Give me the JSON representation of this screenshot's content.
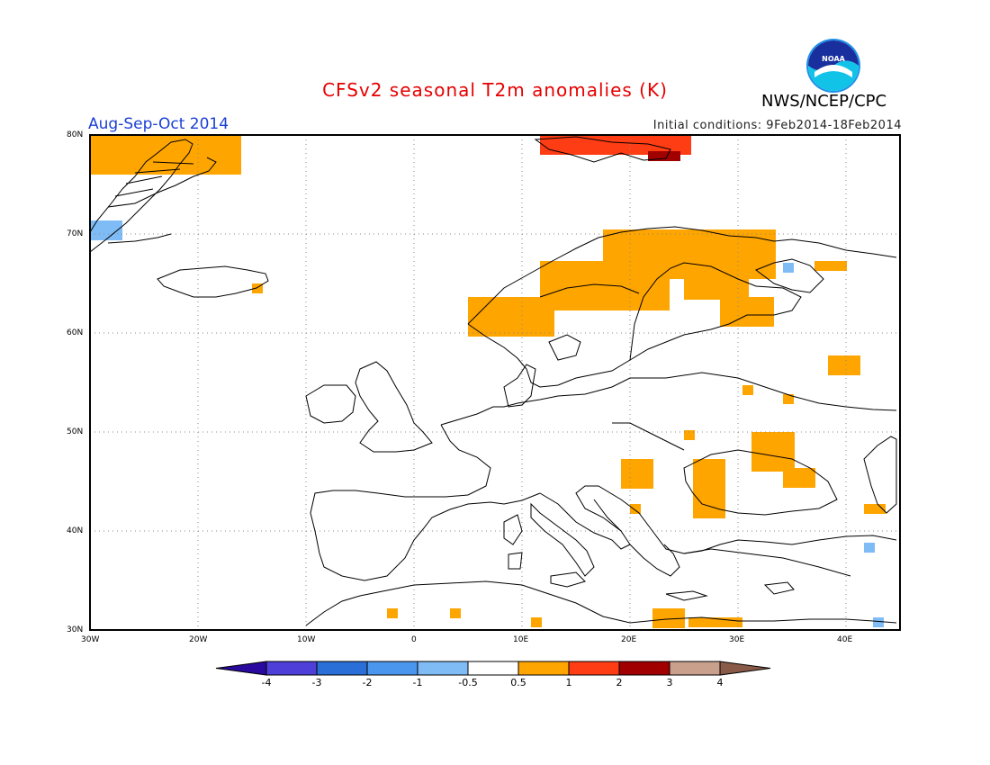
{
  "header": {
    "title": "CFSv2 seasonal T2m anomalies (K)",
    "period": "Aug-Sep-Oct 2014",
    "initial_conditions": "Initial conditions: 9Feb2014-18Feb2014",
    "agency": "NWS/NCEP/CPC",
    "logo_text": "NOAA"
  },
  "map": {
    "lat_labels": [
      "80N",
      "70N",
      "60N",
      "50N",
      "40N",
      "30N"
    ],
    "lon_labels": [
      "30W",
      "20W",
      "10W",
      "0",
      "10E",
      "20E",
      "30E",
      "40E"
    ],
    "lon_range": [
      -30,
      45
    ],
    "lat_range": [
      30,
      80
    ],
    "grid": true
  },
  "colorbar": {
    "ticks": [
      "-4",
      "-3",
      "-2",
      "-1",
      "-0.5",
      "0.5",
      "1",
      "2",
      "3",
      "4"
    ],
    "colors": [
      "#2a0a9e",
      "#4d3fd8",
      "#2a6ed8",
      "#4a96ef",
      "#7fbcf5",
      "#ffffff",
      "#ffa500",
      "#ff3d14",
      "#a00000",
      "#c9a08c",
      "#8a5a48"
    ]
  },
  "colors": {
    "orange": "#ffa500",
    "red": "#ff3d14",
    "darkred": "#a00000",
    "lightblue": "#7fbcf5",
    "title": "#e60000",
    "period": "#1a3fd6"
  }
}
